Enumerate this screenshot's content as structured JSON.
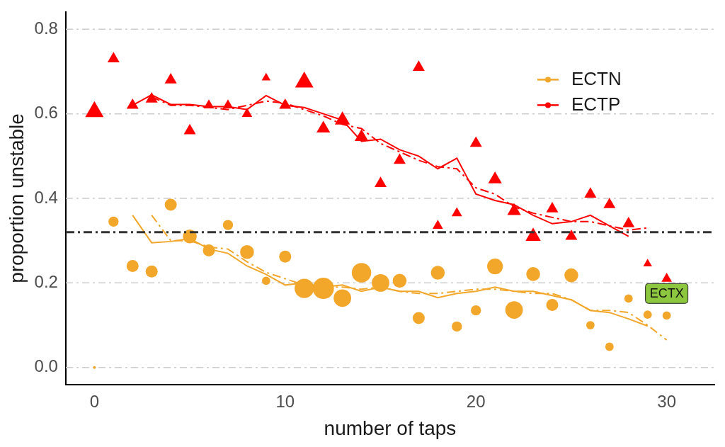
{
  "chart_data": {
    "type": "scatter",
    "x_label": "number of taps",
    "y_label": "proportion unstable",
    "xlim": [
      -1.5,
      32.5
    ],
    "xticks": [
      0,
      10,
      20,
      30
    ],
    "ylim": [
      -0.04,
      0.84
    ],
    "yticks": [
      {
        "value": 0,
        "label": "0.0"
      },
      0.2,
      0.4,
      0.6,
      0.8
    ],
    "grid": "y",
    "legend": "upper right",
    "series": [
      {
        "name": "ECTN",
        "color": "#f2a62a",
        "marker": "circle",
        "x": [
          0,
          1,
          2,
          3,
          4,
          5,
          6,
          7,
          8,
          9,
          10,
          11,
          12,
          13,
          14,
          15,
          16,
          17,
          18,
          19,
          20,
          21,
          22,
          23,
          24,
          25,
          26,
          27,
          28,
          29,
          30
        ],
        "values": [
          0.0,
          0.345,
          0.24,
          0.227,
          0.385,
          0.31,
          0.277,
          0.337,
          0.273,
          0.205,
          0.262,
          0.187,
          0.187,
          0.164,
          0.224,
          0.2,
          0.205,
          0.117,
          0.224,
          0.097,
          0.135,
          0.239,
          0.136,
          0.221,
          0.148,
          0.218,
          0.1,
          0.049,
          0.163,
          0.125,
          0.123
        ],
        "sizes": [
          0,
          2,
          2.5,
          2.5,
          2.5,
          3,
          2.5,
          2,
          3,
          1.5,
          2.5,
          4.5,
          5,
          4,
          4.5,
          4,
          3,
          2.5,
          3,
          2,
          2,
          3.5,
          4,
          3,
          2.5,
          3,
          1.5,
          1.5,
          1.5,
          1.5,
          1.5
        ],
        "trends": [
          {
            "line_style": "solid",
            "x": [
              2,
              3,
              4,
              5,
              6,
              7,
              8,
              9,
              10,
              11,
              12,
              13,
              14,
              15,
              16,
              17,
              18,
              19,
              20,
              21,
              22,
              23,
              24,
              25,
              26,
              27,
              28,
              29
            ],
            "values": [
              0.36,
              0.295,
              0.298,
              0.305,
              0.28,
              0.27,
              0.24,
              0.22,
              0.195,
              0.2,
              0.19,
              0.195,
              0.18,
              0.19,
              0.18,
              0.18,
              0.165,
              0.175,
              0.18,
              0.19,
              0.18,
              0.18,
              0.17,
              0.16,
              0.135,
              0.13,
              0.115,
              0.098
            ]
          },
          {
            "line_style": "dashdot",
            "x": [
              3,
              4,
              5,
              6,
              7,
              8,
              9,
              10,
              11,
              12,
              13,
              14,
              15,
              16,
              17,
              18,
              19,
              20,
              21,
              22,
              23,
              24,
              25,
              26,
              27,
              28,
              29,
              30
            ],
            "values": [
              0.36,
              0.3,
              0.3,
              0.285,
              0.28,
              0.25,
              0.225,
              0.21,
              0.195,
              0.19,
              0.19,
              0.185,
              0.19,
              0.18,
              0.175,
              0.175,
              0.18,
              0.185,
              0.185,
              0.18,
              0.175,
              0.175,
              0.16,
              0.135,
              0.135,
              0.13,
              0.1,
              0.065
            ]
          }
        ]
      },
      {
        "name": "ECTP",
        "color": "#ff0000",
        "marker": "triangle",
        "x": [
          0,
          1,
          2,
          3,
          4,
          5,
          6,
          7,
          8,
          9,
          10,
          11,
          12,
          13,
          14,
          15,
          16,
          17,
          18,
          19,
          20,
          21,
          22,
          23,
          24,
          25,
          26,
          27,
          28,
          29,
          30
        ],
        "values": [
          0.605,
          0.73,
          0.62,
          0.635,
          0.68,
          0.56,
          0.62,
          0.62,
          0.6,
          0.685,
          0.62,
          0.675,
          0.565,
          0.585,
          0.545,
          0.435,
          0.49,
          0.71,
          0.335,
          0.365,
          0.53,
          0.445,
          0.37,
          0.31,
          0.375,
          0.31,
          0.41,
          0.385,
          0.34,
          0.245,
          0.21
        ],
        "sizes": [
          5,
          3,
          3,
          3,
          3,
          3,
          2.5,
          2.5,
          2.5,
          2,
          3,
          5,
          3.5,
          4,
          3.5,
          3,
          3,
          3,
          2.5,
          2.5,
          3,
          3.5,
          3.5,
          4,
          3,
          3,
          3,
          3,
          3,
          2,
          2.5
        ],
        "trends": [
          {
            "line_style": "solid",
            "x": [
              2,
              3,
              4,
              5,
              6,
              7,
              8,
              9,
              10,
              11,
              12,
              13,
              14,
              15,
              16,
              17,
              18,
              19,
              20,
              21,
              22,
              23,
              24,
              25,
              26,
              27,
              28
            ],
            "values": [
              0.62,
              0.645,
              0.622,
              0.622,
              0.617,
              0.617,
              0.61,
              0.643,
              0.62,
              0.615,
              0.6,
              0.585,
              0.535,
              0.54,
              0.515,
              0.5,
              0.47,
              0.495,
              0.41,
              0.395,
              0.385,
              0.36,
              0.34,
              0.345,
              0.36,
              0.335,
              0.31
            ]
          },
          {
            "line_style": "dashdot",
            "x": [
              3,
              4,
              5,
              6,
              7,
              8,
              9,
              10,
              11,
              12,
              13,
              14,
              15,
              16,
              17,
              18,
              19,
              20,
              21,
              22,
              23,
              24,
              25,
              26,
              27,
              28,
              29
            ],
            "values": [
              0.64,
              0.62,
              0.62,
              0.615,
              0.61,
              0.62,
              0.63,
              0.625,
              0.61,
              0.595,
              0.575,
              0.565,
              0.53,
              0.51,
              0.49,
              0.475,
              0.47,
              0.425,
              0.41,
              0.38,
              0.365,
              0.355,
              0.345,
              0.345,
              0.335,
              0.325,
              0.33
            ]
          }
        ]
      }
    ],
    "reference_line": {
      "value": 0.32,
      "line_style": "dashdot",
      "color": "#333333"
    },
    "annotations": [
      {
        "text": "ECTX",
        "x": 30,
        "y": 0.175,
        "color": "#8dc63f"
      }
    ]
  }
}
